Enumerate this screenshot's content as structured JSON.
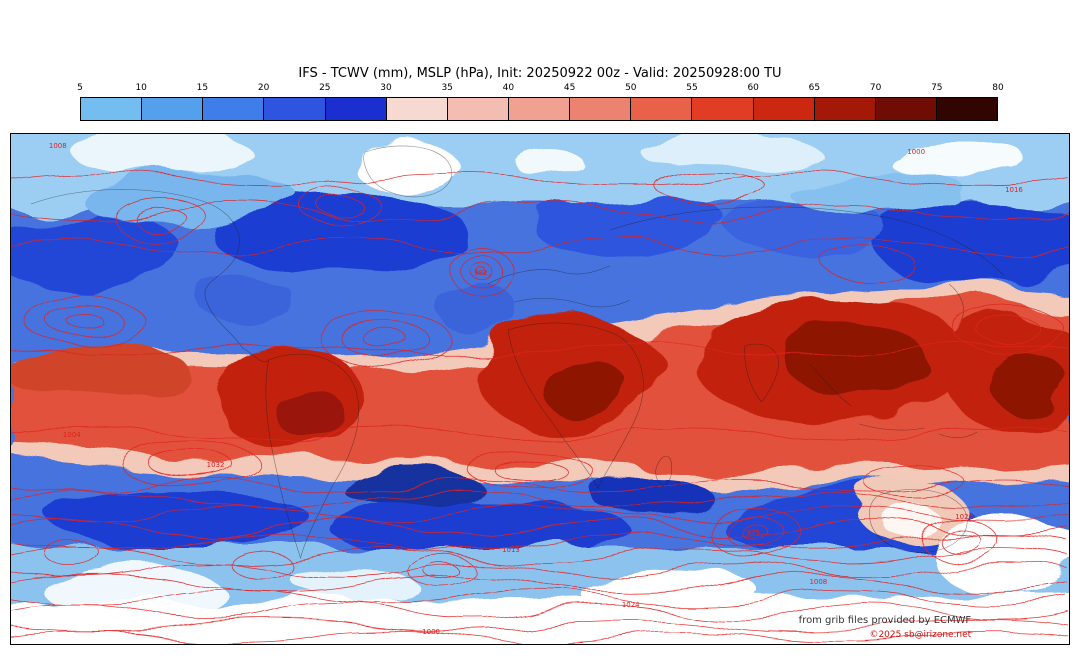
{
  "title": "IFS - TCWV (mm), MSLP (hPa), Init: 20250922 00z - Valid: 20250928:00 TU",
  "colorbar": {
    "unit": "mm",
    "ticks": [
      "5",
      "10",
      "15",
      "20",
      "25",
      "30",
      "35",
      "40",
      "45",
      "50",
      "55",
      "60",
      "65",
      "70",
      "75",
      "80"
    ],
    "colors": [
      "#74bdf0",
      "#55a0ec",
      "#3f7de8",
      "#2e55e0",
      "#1b2fd0",
      "#f6dad2",
      "#f3beb1",
      "#f0a192",
      "#ec8270",
      "#e8614b",
      "#e13d24",
      "#cb2711",
      "#a31807",
      "#6f0c03",
      "#310601"
    ]
  },
  "map": {
    "field_name": "TCWV (mm)",
    "contour_field": "MSLP (hPa)",
    "contour_labels": [
      "1008",
      "1000",
      "1016",
      "982",
      "1013",
      "975",
      "1020",
      "1024",
      "1008",
      "1000",
      "1032",
      "1004"
    ]
  },
  "attribution": {
    "provider": "from grib files provided by ECMWF",
    "copyright": "©2025 sb@irizone.net"
  },
  "chart_data": {
    "type": "heatmap",
    "title": "IFS - TCWV (mm), MSLP (hPa), Init: 20250922 00z - Valid: 20250928:00 TU",
    "field": "Total column water vapour (mm), shaded",
    "overlay": "Mean sea level pressure contours (hPa), red lines",
    "colorbar_values": [
      5,
      10,
      15,
      20,
      25,
      30,
      35,
      40,
      45,
      50,
      55,
      60,
      65,
      70,
      75,
      80
    ],
    "colorbar_range": [
      5,
      80
    ],
    "legend_position": "top"
  }
}
